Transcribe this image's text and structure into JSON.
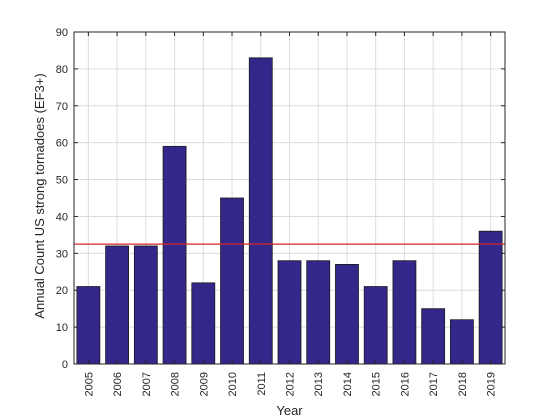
{
  "chart_data": {
    "type": "bar",
    "title": "",
    "xlabel": "Year",
    "ylabel": "Annual Count US strong tornadoes (EF3+)",
    "categories": [
      "2005",
      "2006",
      "2007",
      "2008",
      "2009",
      "2010",
      "2011",
      "2012",
      "2013",
      "2014",
      "2015",
      "2016",
      "2017",
      "2018",
      "2019"
    ],
    "values": [
      21,
      32,
      32,
      59,
      22,
      45,
      83,
      28,
      28,
      27,
      21,
      28,
      15,
      12,
      36
    ],
    "ylim": [
      0,
      90
    ],
    "yticks": [
      0,
      10,
      20,
      30,
      40,
      50,
      60,
      70,
      80,
      90
    ],
    "grid": true,
    "reference_line": {
      "value": 32.5,
      "color": "#d62728"
    },
    "colors": {
      "bar_fill": "#33288a",
      "bar_edge": "#1a1a1a",
      "grid": "#dcdcdc",
      "axis": "#262626"
    }
  }
}
